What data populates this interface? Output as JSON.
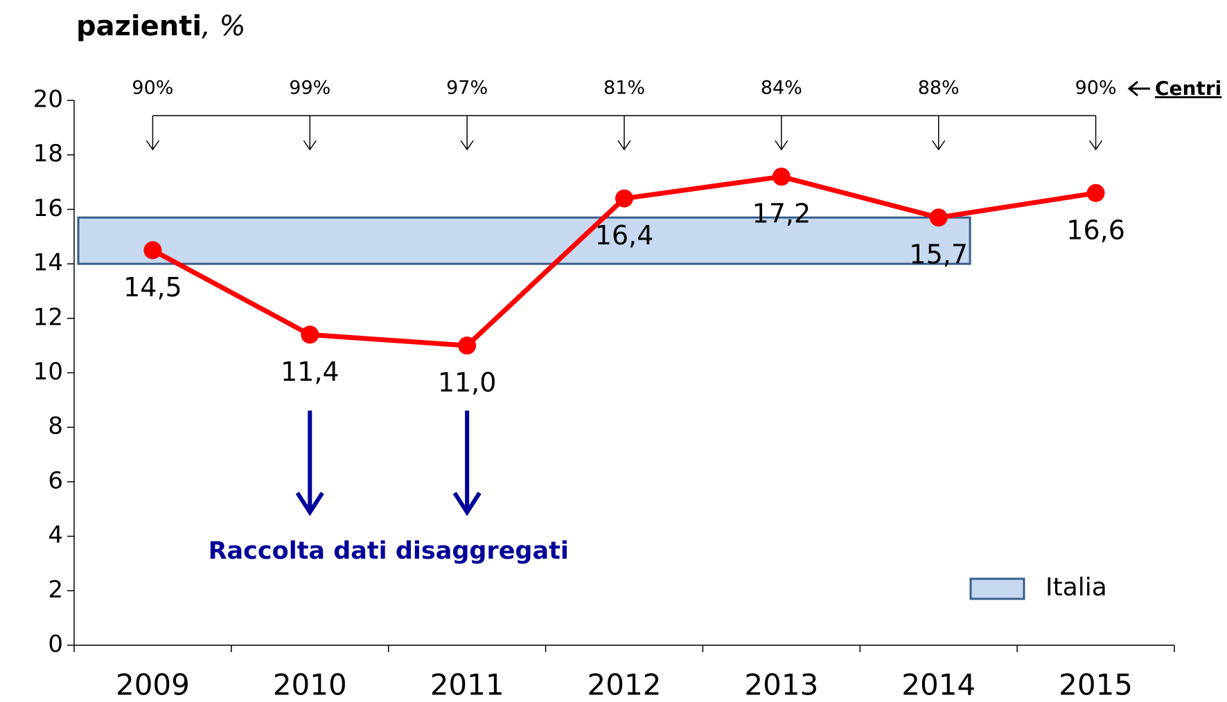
{
  "chart_data": {
    "type": "line",
    "title_parts": [
      "pazienti",
      ", %"
    ],
    "categories": [
      "2009",
      "2010",
      "2011",
      "2012",
      "2013",
      "2014",
      "2015"
    ],
    "series": [
      {
        "color": "#ff0000",
        "values": [
          14.5,
          11.4,
          11.0,
          16.4,
          17.2,
          15.7,
          16.6
        ],
        "value_labels": [
          "14,5",
          "11,4",
          "11,0",
          "16,4",
          "17,2",
          "15,7",
          "16,6"
        ]
      }
    ],
    "ylim": [
      0,
      20
    ],
    "yticks": [
      0,
      2,
      4,
      6,
      8,
      10,
      12,
      14,
      16,
      18,
      20
    ],
    "band": {
      "name": "Italia",
      "range": [
        14,
        15.7
      ],
      "color": "#c6d9f1",
      "border": "#385d8a"
    },
    "centri": {
      "label": "Centri",
      "values": [
        90,
        99,
        97,
        81,
        84,
        88,
        90
      ],
      "value_labels": [
        "90%",
        "99%",
        "97%",
        "81%",
        "84%",
        "88%",
        "90%"
      ]
    },
    "annotation": {
      "text": "Raccolta dati disaggregati",
      "color": "#000099",
      "categories": [
        1,
        2
      ]
    }
  }
}
